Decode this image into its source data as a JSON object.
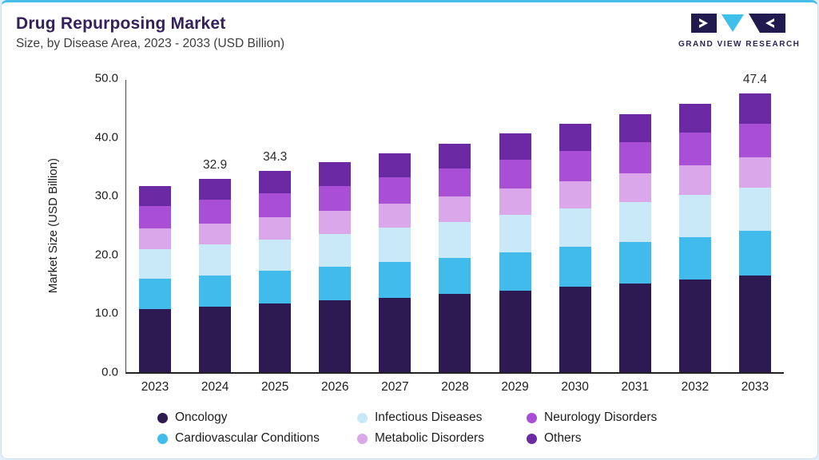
{
  "header": {
    "title": "Drug Repurposing Market",
    "subtitle": "Size, by Disease Area, 2023 - 2033 (USD Billion)",
    "logo_text": "GRAND VIEW RESEARCH"
  },
  "colors": {
    "accent_top_line": "#44BDE9",
    "title_text": "#33205C",
    "logo_navy": "#211A4E",
    "logo_cyan": "#3FC0EA"
  },
  "chart_data": {
    "type": "bar",
    "stacked": true,
    "title": "Drug Repurposing Market Size, by Disease Area, 2023 - 2033 (USD Billion)",
    "xlabel": "",
    "ylabel": "Market Size (USD Billion)",
    "ylim": [
      0,
      50
    ],
    "yticks": [
      "0.0",
      "10.0",
      "20.0",
      "30.0",
      "40.0",
      "50.0"
    ],
    "grid": false,
    "legend_position": "bottom",
    "categories": [
      "2023",
      "2024",
      "2025",
      "2026",
      "2027",
      "2028",
      "2029",
      "2030",
      "2031",
      "2032",
      "2033"
    ],
    "series": [
      {
        "name": "Oncology",
        "color": "#2E1A52",
        "values": [
          10.8,
          11.2,
          11.7,
          12.2,
          12.7,
          13.3,
          13.9,
          14.5,
          15.1,
          15.7,
          16.4
        ]
      },
      {
        "name": "Cardiovascular Conditions",
        "color": "#41BBEC",
        "values": [
          5.1,
          5.3,
          5.5,
          5.7,
          6.0,
          6.2,
          6.5,
          6.8,
          7.0,
          7.3,
          7.6
        ]
      },
      {
        "name": "Infectious Diseases",
        "color": "#C9E9F9",
        "values": [
          5.0,
          5.2,
          5.4,
          5.6,
          5.9,
          6.1,
          6.4,
          6.6,
          6.9,
          7.2,
          7.4
        ]
      },
      {
        "name": "Metabolic Disorders",
        "color": "#D9A7EA",
        "values": [
          3.5,
          3.6,
          3.8,
          3.9,
          4.1,
          4.3,
          4.5,
          4.6,
          4.8,
          5.0,
          5.2
        ]
      },
      {
        "name": "Neurology Disorders",
        "color": "#A94FD6",
        "values": [
          3.8,
          4.0,
          4.1,
          4.3,
          4.5,
          4.7,
          4.9,
          5.1,
          5.3,
          5.5,
          5.7
        ]
      },
      {
        "name": "Others",
        "color": "#6B2AA3",
        "values": [
          3.5,
          3.6,
          3.8,
          4.1,
          4.1,
          4.3,
          4.4,
          4.6,
          4.8,
          4.9,
          5.1
        ]
      }
    ],
    "totals": [
      31.7,
      32.9,
      34.3,
      35.8,
      37.3,
      38.9,
      40.6,
      42.2,
      43.9,
      45.6,
      47.4
    ],
    "visible_total_labels": {
      "2024": "32.9",
      "2025": "34.3",
      "2033": "47.4"
    }
  },
  "legend": {
    "rows": [
      [
        0,
        2,
        4
      ],
      [
        1,
        3,
        5
      ]
    ]
  }
}
